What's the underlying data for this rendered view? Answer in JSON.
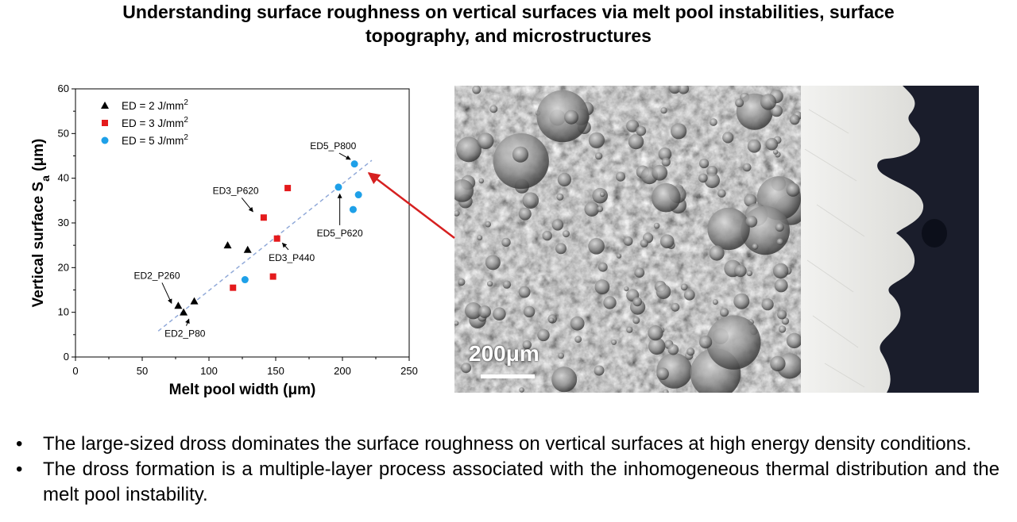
{
  "title": {
    "line1": "Understanding surface roughness on vertical surfaces via melt pool instabilities, surface",
    "line2": "topography, and microstructures"
  },
  "chart_data": {
    "type": "scatter",
    "xlabel": "Melt pool width (μm)",
    "ylabel_main": "Vertical surface S",
    "ylabel_sub": "a",
    "ylabel_unit": " (μm)",
    "xlim": [
      0,
      250
    ],
    "ylim": [
      0,
      60
    ],
    "xticks": [
      0,
      50,
      100,
      150,
      200,
      250
    ],
    "yticks": [
      0,
      10,
      20,
      30,
      40,
      50,
      60
    ],
    "legend_position": "top-left",
    "series": [
      {
        "name": "ED = 2 J/mm",
        "sup": "2",
        "marker": "triangle",
        "color": "#000000",
        "points": [
          [
            77,
            11.5
          ],
          [
            81,
            10
          ],
          [
            89,
            12.5
          ],
          [
            114,
            25
          ],
          [
            129,
            24
          ]
        ]
      },
      {
        "name": "ED = 3 J/mm",
        "sup": "2",
        "marker": "square",
        "color": "#e41a1c",
        "points": [
          [
            118,
            15.5
          ],
          [
            141,
            31.2
          ],
          [
            148,
            18
          ],
          [
            151,
            26.5
          ],
          [
            159,
            37.8
          ]
        ]
      },
      {
        "name": "ED = 5 J/mm",
        "sup": "2",
        "marker": "circle",
        "color": "#1ea0e8",
        "points": [
          [
            127,
            17.3
          ],
          [
            197,
            38
          ],
          [
            208,
            33
          ],
          [
            209,
            43.2
          ],
          [
            212,
            36.3
          ]
        ]
      }
    ],
    "trendline": {
      "style": "dashed",
      "color": "#8fa8d8",
      "from": [
        62,
        5.8
      ],
      "to": [
        222,
        44
      ]
    },
    "annotations": [
      {
        "text": "ED5_P800",
        "label_at": [
          193,
          46.5
        ],
        "arrow_to": [
          206,
          44.2
        ]
      },
      {
        "text": "ED3_P620",
        "label_at": [
          120,
          36.5
        ],
        "arrow_to": [
          133,
          32.5
        ]
      },
      {
        "text": "ED5_P620",
        "label_at": [
          198,
          27
        ],
        "arrow_to": [
          198,
          36.5
        ]
      },
      {
        "text": "ED3_P440",
        "label_at": [
          162,
          21.5
        ],
        "arrow_to": [
          155,
          25.5
        ]
      },
      {
        "text": "ED2_P260",
        "label_at": [
          61,
          17.5
        ],
        "arrow_to": [
          72,
          12
        ]
      },
      {
        "text": "ED2_P80",
        "label_at": [
          82,
          4.5
        ],
        "arrow_to": [
          85,
          8.5
        ]
      }
    ]
  },
  "images": {
    "scale_bar_label": "200μm"
  },
  "bullets": [
    "The large-sized dross dominates the surface roughness on vertical surfaces at high energy density conditions.",
    "The dross formation is a multiple-layer process associated with the inhomogeneous thermal distribution and the melt pool instability."
  ]
}
